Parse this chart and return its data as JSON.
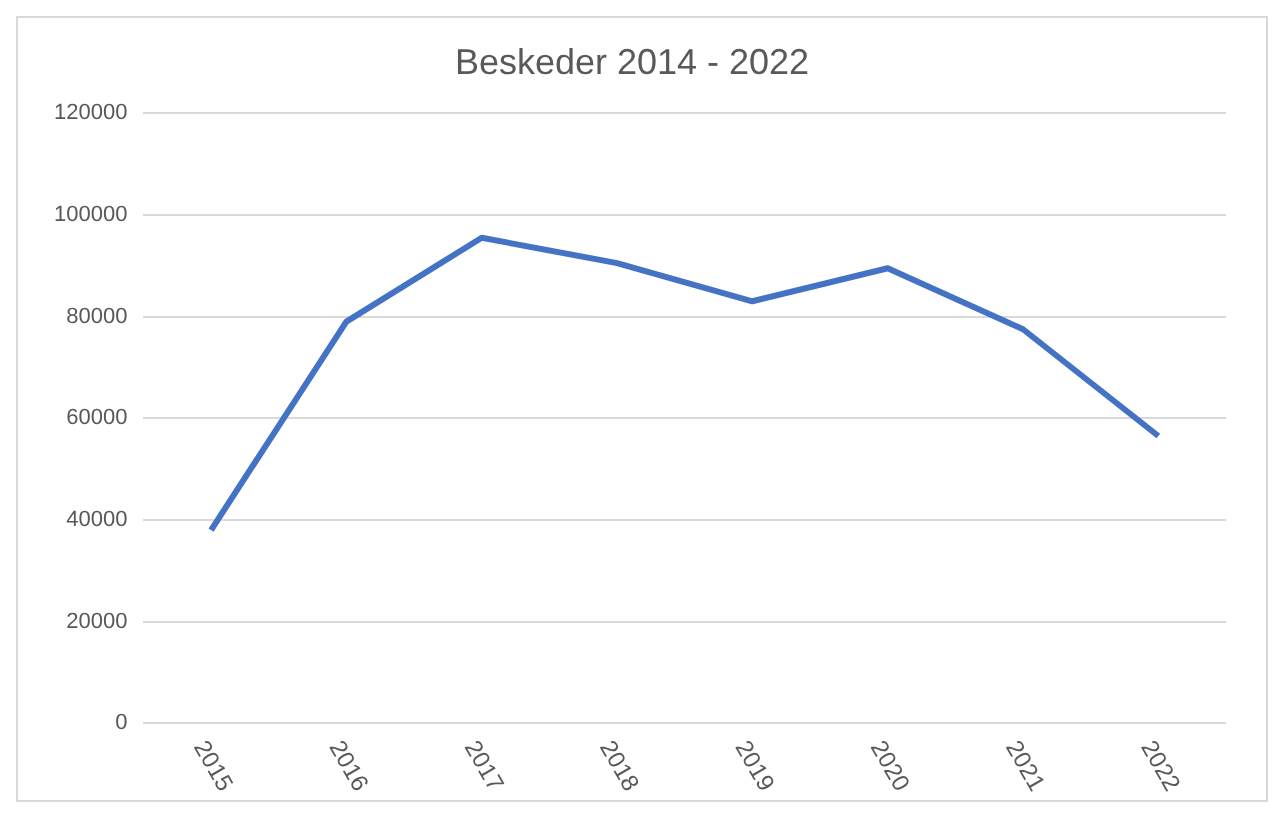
{
  "chart_data": {
    "type": "line",
    "title": "Beskeder 2014 - 2022",
    "categories": [
      "2015",
      "2016",
      "2017",
      "2018",
      "2019",
      "2020",
      "2021",
      "2022"
    ],
    "series": [
      {
        "color": "#4472c4",
        "values": [
          38000,
          79000,
          95500,
          90500,
          83000,
          89500,
          77500,
          56500
        ]
      }
    ],
    "ylim": [
      0,
      120000
    ],
    "yticks": [
      0,
      20000,
      40000,
      60000,
      80000,
      100000,
      120000
    ],
    "grid": "y",
    "legend": false,
    "marker": "none",
    "line_style": "solid"
  }
}
